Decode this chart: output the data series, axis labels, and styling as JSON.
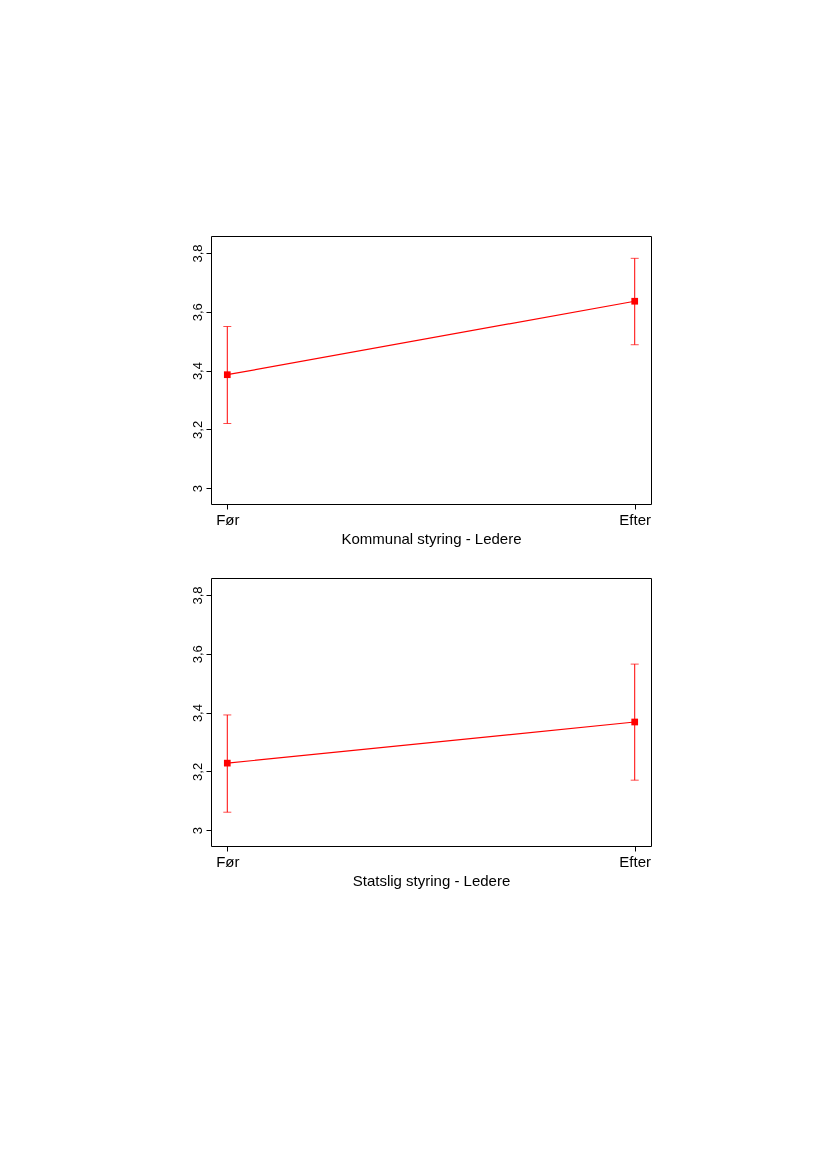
{
  "chart_data": [
    {
      "type": "line",
      "xlabel": "Kommunal styring - Ledere",
      "categories": [
        "Før",
        "Efter"
      ],
      "ylim": [
        2.946,
        3.858
      ],
      "yticks": [
        3,
        {
          "value": 3.2,
          "label": "3,2"
        },
        {
          "value": 3.4,
          "label": "3,4"
        },
        {
          "value": 3.6,
          "label": "3,6"
        },
        {
          "value": 3.8,
          "label": "3,8"
        }
      ],
      "grid": false,
      "marker": "square",
      "line_style": "solid",
      "series": [
        {
          "color": "#ff0000",
          "values": [
            3.386,
            3.636
          ],
          "errors": [
            [
              3.22,
              3.55
            ],
            [
              3.488,
              3.782
            ]
          ]
        }
      ]
    },
    {
      "type": "line",
      "xlabel": "Statslig styring - Ledere",
      "categories": [
        "Før",
        "Efter"
      ],
      "ylim": [
        2.946,
        3.858
      ],
      "yticks": [
        3,
        {
          "value": 3.2,
          "label": "3,2"
        },
        {
          "value": 3.4,
          "label": "3,4"
        },
        {
          "value": 3.6,
          "label": "3,6"
        },
        {
          "value": 3.8,
          "label": "3,8"
        }
      ],
      "grid": false,
      "marker": "square",
      "line_style": "solid",
      "series": [
        {
          "color": "#ff0000",
          "values": [
            3.228,
            3.368
          ],
          "errors": [
            [
              3.061,
              3.392
            ],
            [
              3.17,
              3.565
            ]
          ]
        }
      ]
    }
  ]
}
